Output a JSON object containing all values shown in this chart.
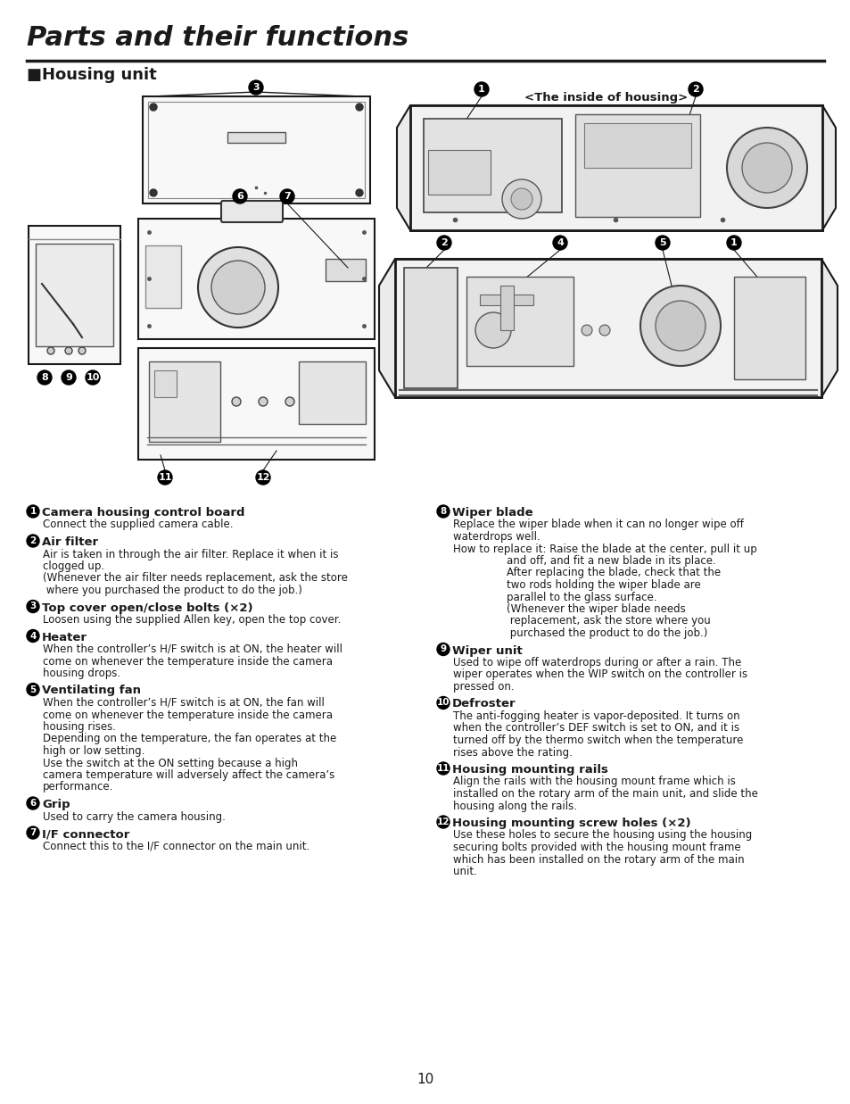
{
  "title": "Parts and their functions",
  "section": "■Housing unit",
  "inside_label": "<The inside of housing>",
  "page_number": "10",
  "bg_color": "#ffffff",
  "text_color": "#1a1a1a",
  "items_left": [
    {
      "num": "1",
      "heading": "Camera housing control board",
      "body": [
        "Connect the supplied camera cable."
      ]
    },
    {
      "num": "2",
      "heading": "Air filter",
      "body": [
        "Air is taken in through the air filter. Replace it when it is",
        "clogged up.",
        "(Whenever the air filter needs replacement, ask the store",
        " where you purchased the product to do the job.)"
      ]
    },
    {
      "num": "3",
      "heading": "Top cover open/close bolts (×2)",
      "body": [
        "Loosen using the supplied Allen key, open the top cover."
      ]
    },
    {
      "num": "4",
      "heading": "Heater",
      "body": [
        "When the controller’s H/F switch is at ON, the heater will",
        "come on whenever the temperature inside the camera",
        "housing drops."
      ]
    },
    {
      "num": "5",
      "heading": "Ventilating fan",
      "body": [
        "When the controller’s H/F switch is at ON, the fan will",
        "come on whenever the temperature inside the camera",
        "housing rises.",
        "Depending on the temperature, the fan operates at the",
        "high or low setting.",
        "Use the switch at the ON setting because a high",
        "camera temperature will adversely affect the camera’s",
        "performance."
      ]
    },
    {
      "num": "6",
      "heading": "Grip",
      "body": [
        "Used to carry the camera housing."
      ]
    },
    {
      "num": "7",
      "heading": "I/F connector",
      "body": [
        "Connect this to the I/F connector on the main unit."
      ]
    }
  ],
  "items_right": [
    {
      "num": "8",
      "heading": "Wiper blade",
      "body": [
        "Replace the wiper blade when it can no longer wipe off",
        "waterdrops well.",
        "How to replace it: Raise the blade at the center, pull it up",
        "                and off, and fit a new blade in its place.",
        "                After replacing the blade, check that the",
        "                two rods holding the wiper blade are",
        "                parallel to the glass surface.",
        "                (Whenever the wiper blade needs",
        "                 replacement, ask the store where you",
        "                 purchased the product to do the job.)"
      ]
    },
    {
      "num": "9",
      "heading": "Wiper unit",
      "body": [
        "Used to wipe off waterdrops during or after a rain. The",
        "wiper operates when the WIP switch on the controller is",
        "pressed on."
      ]
    },
    {
      "num": "10",
      "heading": "Defroster",
      "body": [
        "The anti-fogging heater is vapor-deposited. It turns on",
        "when the controller’s DEF switch is set to ON, and it is",
        "turned off by the thermo switch when the temperature",
        "rises above the rating."
      ]
    },
    {
      "num": "11",
      "heading": "Housing mounting rails",
      "body": [
        "Align the rails with the housing mount frame which is",
        "installed on the rotary arm of the main unit, and slide the",
        "housing along the rails."
      ]
    },
    {
      "num": "12",
      "heading": "Housing mounting screw holes (×2)",
      "body": [
        "Use these holes to secure the housing using the housing",
        "securing bolts provided with the housing mount frame",
        "which has been installed on the rotary arm of the main",
        "unit."
      ]
    }
  ]
}
